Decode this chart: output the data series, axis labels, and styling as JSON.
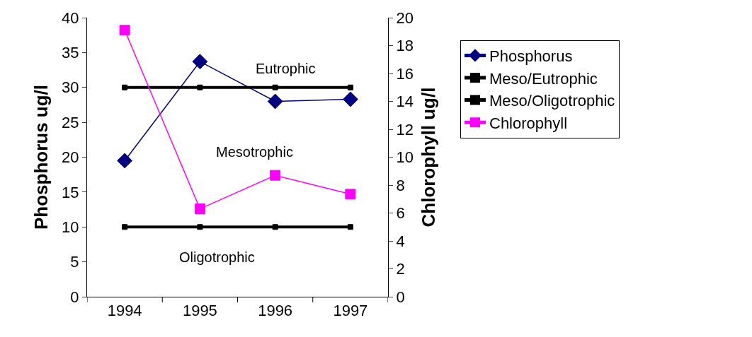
{
  "chart_data": {
    "type": "line",
    "categories": [
      "1994",
      "1995",
      "1996",
      "1997"
    ],
    "ylabel": "Phosphorus ug/l",
    "y2label": "Chlorophyll ug/l",
    "ylim": [
      0,
      40
    ],
    "yticks": [
      0,
      5,
      10,
      15,
      20,
      25,
      30,
      35,
      40
    ],
    "y2lim": [
      0,
      20
    ],
    "y2ticks": [
      0,
      2,
      4,
      6,
      8,
      10,
      12,
      14,
      16,
      18,
      20
    ],
    "grid": false,
    "legend": "right",
    "series": [
      {
        "name": "Phosphorus",
        "color": "#000080",
        "marker": "diamond",
        "values": [
          19.5,
          33.7,
          28,
          28.3
        ]
      },
      {
        "name": "Meso/Eutrophic",
        "color": "#000000",
        "marker": "square",
        "values": [
          30,
          30,
          30,
          30
        ]
      },
      {
        "name": "Meso/Oligotrophic",
        "color": "#000000",
        "marker": "square",
        "values": [
          10,
          10,
          10,
          10
        ]
      },
      {
        "name": "Chlorophyll",
        "color": "#ff00ff",
        "marker": "square",
        "axis": "y2",
        "values": [
          19.1,
          6.3,
          8.7,
          7.35
        ]
      }
    ],
    "annotations": [
      "Eutrophic",
      "Mesotrophic",
      "Oligotrophic"
    ]
  }
}
